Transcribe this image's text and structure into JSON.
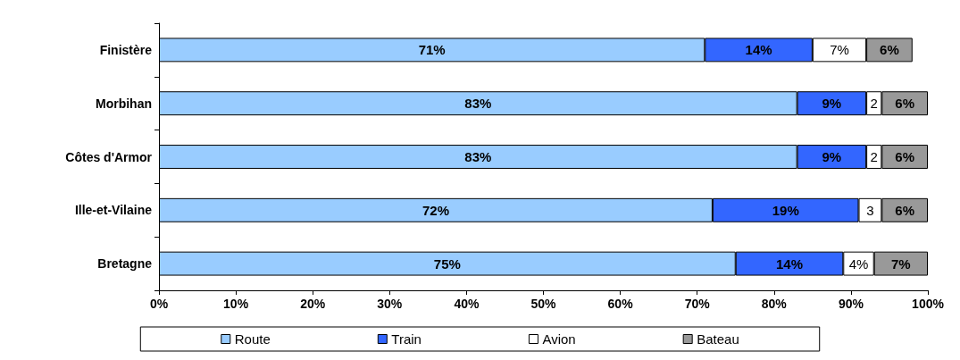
{
  "chart_data": {
    "type": "bar",
    "orientation": "horizontal",
    "stacked": true,
    "categories": [
      "Finistère",
      "Morbihan",
      "Côtes d'Armor",
      "Ille-et-Vilaine",
      "Bretagne"
    ],
    "series": [
      {
        "name": "Route",
        "color": "#99ccff",
        "values": [
          71,
          83,
          83,
          72,
          75
        ],
        "value_labels": [
          "71%",
          "83%",
          "83%",
          "72%",
          "75%"
        ]
      },
      {
        "name": "Train",
        "color": "#3366ff",
        "values": [
          14,
          9,
          9,
          19,
          14
        ],
        "value_labels": [
          "14%",
          "9%",
          "9%",
          "19%",
          "14%"
        ]
      },
      {
        "name": "Avion",
        "color": "#ffffff",
        "values": [
          7,
          2,
          2,
          3,
          4
        ],
        "value_labels": [
          "7%",
          "2",
          "2",
          "3",
          "4%"
        ]
      },
      {
        "name": "Bateau",
        "color": "#999999",
        "values": [
          6,
          6,
          6,
          6,
          7
        ],
        "value_labels": [
          "6%",
          "6%",
          "6%",
          "6%",
          "7%"
        ]
      }
    ],
    "xlim": [
      0,
      100
    ],
    "xticks": [
      {
        "value": 0,
        "label": "0%"
      },
      {
        "value": 10,
        "label": "10%"
      },
      {
        "value": 20,
        "label": "20%"
      },
      {
        "value": 30,
        "label": "30%"
      },
      {
        "value": 40,
        "label": "40%"
      },
      {
        "value": 50,
        "label": "50%"
      },
      {
        "value": 60,
        "label": "60%"
      },
      {
        "value": 70,
        "label": "70%"
      },
      {
        "value": 80,
        "label": "80%"
      },
      {
        "value": 90,
        "label": "90%"
      },
      {
        "value": 100,
        "label": "100%"
      }
    ],
    "grid": false,
    "legend": "bottom"
  }
}
